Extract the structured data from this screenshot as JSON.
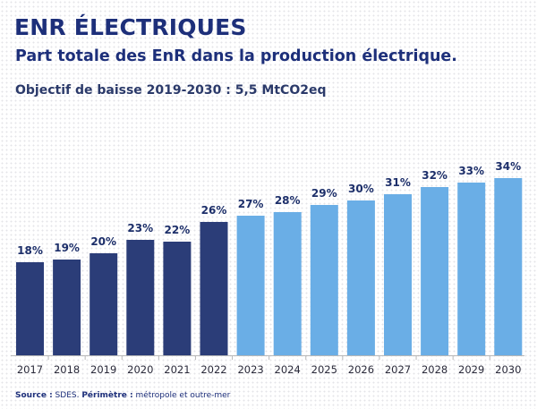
{
  "header": {
    "title": "ENR ÉLECTRIQUES",
    "subtitle": "Part totale des EnR dans la production électrique.",
    "objective": "Objectif de baisse 2019-2030 : 5,5 MtCO2eq"
  },
  "footer": {
    "source_label": "Source :",
    "source_value": " SDES. ",
    "perimeter_label": "Périmètre :",
    "perimeter_value": " métropole et outre-mer"
  },
  "colors": {
    "historical": "#2b3d78",
    "projection": "#6aaee6",
    "axis": "#b8b8b8"
  },
  "chart_data": {
    "type": "bar",
    "title": "",
    "xlabel": "",
    "ylabel": "",
    "ylim": [
      0,
      40
    ],
    "grid": false,
    "legend": "none",
    "categories": [
      "2017",
      "2018",
      "2019",
      "2020",
      "2021",
      "2022",
      "2023",
      "2024",
      "2025",
      "2026",
      "2027",
      "2028",
      "2029",
      "2030"
    ],
    "values": [
      18,
      19,
      20,
      23,
      22,
      26,
      27,
      28,
      29,
      30,
      31,
      32,
      33,
      34
    ],
    "data_labels": [
      "18%",
      "19%",
      "20%",
      "23%",
      "22%",
      "26%",
      "27%",
      "28%",
      "29%",
      "30%",
      "31%",
      "32%",
      "33%",
      "34%"
    ],
    "bar_groups": [
      "historical",
      "historical",
      "historical",
      "historical",
      "historical",
      "historical",
      "projection",
      "projection",
      "projection",
      "projection",
      "projection",
      "projection",
      "projection",
      "projection"
    ],
    "bar_heights_approx": [
      104,
      107,
      114,
      129,
      127,
      149,
      156,
      160,
      168,
      173,
      180,
      188,
      193,
      198
    ]
  }
}
